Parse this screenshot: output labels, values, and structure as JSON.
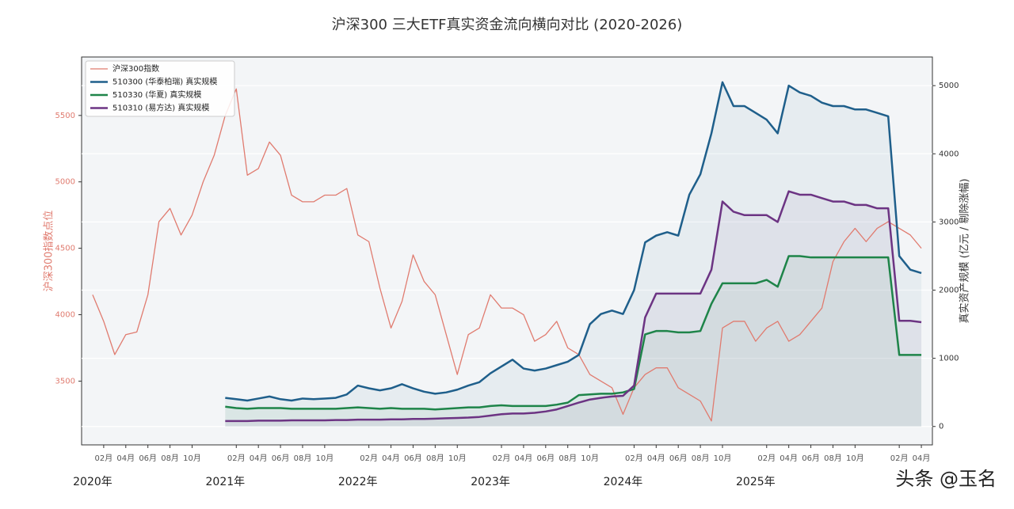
{
  "chart_data": {
    "type": "line",
    "title": "沪深300 三大ETF真实资金流向横向对比 (2020-2026)",
    "ylabel": "沪深300指数点位",
    "y2label": "真实资产规模 (亿元 / 剔除涨幅)",
    "watermark": "头条 @玉名",
    "x": [
      "2020-01",
      "2020-02",
      "2020-03",
      "2020-04",
      "2020-05",
      "2020-06",
      "2020-07",
      "2020-08",
      "2020-09",
      "2020-10",
      "2020-11",
      "2020-12",
      "2021-01",
      "2021-02",
      "2021-03",
      "2021-04",
      "2021-05",
      "2021-06",
      "2021-07",
      "2021-08",
      "2021-09",
      "2021-10",
      "2021-11",
      "2021-12",
      "2022-01",
      "2022-02",
      "2022-03",
      "2022-04",
      "2022-05",
      "2022-06",
      "2022-07",
      "2022-08",
      "2022-09",
      "2022-10",
      "2022-11",
      "2022-12",
      "2023-01",
      "2023-02",
      "2023-03",
      "2023-04",
      "2023-05",
      "2023-06",
      "2023-07",
      "2023-08",
      "2023-09",
      "2023-10",
      "2023-11",
      "2023-12",
      "2024-01",
      "2024-02",
      "2024-03",
      "2024-04",
      "2024-05",
      "2024-06",
      "2024-07",
      "2024-08",
      "2024-09",
      "2024-10",
      "2024-11",
      "2024-12",
      "2025-01",
      "2025-02",
      "2025-03",
      "2025-04",
      "2025-05",
      "2025-06",
      "2025-07",
      "2025-08",
      "2025-09",
      "2025-10",
      "2025-11",
      "2025-12",
      "2026-01",
      "2026-02",
      "2026-03",
      "2026-04"
    ],
    "xlim": [
      "2019-12",
      "2026-05"
    ],
    "xticks": [
      {
        "value": "2020-02",
        "label": "02月"
      },
      {
        "value": "2020-04",
        "label": "04月"
      },
      {
        "value": "2020-06",
        "label": "06月"
      },
      {
        "value": "2020-08",
        "label": "08月"
      },
      {
        "value": "2020-10",
        "label": "10月"
      },
      {
        "value": "2021-02",
        "label": "02月"
      },
      {
        "value": "2021-04",
        "label": "04月"
      },
      {
        "value": "2021-06",
        "label": "06月"
      },
      {
        "value": "2021-08",
        "label": "08月"
      },
      {
        "value": "2021-10",
        "label": "10月"
      },
      {
        "value": "2022-02",
        "label": "02月"
      },
      {
        "value": "2022-04",
        "label": "04月"
      },
      {
        "value": "2022-06",
        "label": "06月"
      },
      {
        "value": "2022-08",
        "label": "08月"
      },
      {
        "value": "2022-10",
        "label": "10月"
      },
      {
        "value": "2023-02",
        "label": "02月"
      },
      {
        "value": "2023-04",
        "label": "04月"
      },
      {
        "value": "2023-06",
        "label": "06月"
      },
      {
        "value": "2023-08",
        "label": "08月"
      },
      {
        "value": "2023-10",
        "label": "10月"
      },
      {
        "value": "2024-02",
        "label": "02月"
      },
      {
        "value": "2024-04",
        "label": "04月"
      },
      {
        "value": "2024-06",
        "label": "06月"
      },
      {
        "value": "2024-08",
        "label": "08月"
      },
      {
        "value": "2024-10",
        "label": "10月"
      },
      {
        "value": "2025-02",
        "label": "02月"
      },
      {
        "value": "2025-04",
        "label": "04月"
      },
      {
        "value": "2025-06",
        "label": "06月"
      },
      {
        "value": "2025-08",
        "label": "08月"
      },
      {
        "value": "2025-10",
        "label": "10月"
      },
      {
        "value": "2026-02",
        "label": "02月"
      },
      {
        "value": "2026-04",
        "label": "04月"
      }
    ],
    "year_ticks": [
      {
        "value": "2020-01",
        "label": "2020年"
      },
      {
        "value": "2021-01",
        "label": "2021年"
      },
      {
        "value": "2022-01",
        "label": "2022年"
      },
      {
        "value": "2023-01",
        "label": "2023年"
      },
      {
        "value": "2024-01",
        "label": "2024年"
      },
      {
        "value": "2025-01",
        "label": "2025年"
      }
    ],
    "ylim": [
      3020,
      5940
    ],
    "yticks": [
      3500,
      4000,
      4500,
      5000,
      5500
    ],
    "y2lim": [
      -270,
      5420
    ],
    "y2ticks": [
      0,
      1000,
      2000,
      3000,
      4000,
      5000
    ],
    "grid": true,
    "legend": "upper left",
    "series": [
      {
        "name": "沪深300指数",
        "color": "#e07b6f",
        "axis": "y",
        "values": [
          4150,
          3950,
          3700,
          3850,
          3870,
          4150,
          4700,
          4800,
          4600,
          4750,
          5000,
          5200,
          5500,
          5700,
          5050,
          5100,
          5300,
          5200,
          4900,
          4850,
          4850,
          4900,
          4900,
          4950,
          4600,
          4550,
          4200,
          3900,
          4100,
          4450,
          4250,
          4150,
          3850,
          3550,
          3850,
          3900,
          4150,
          4050,
          4050,
          4000,
          3800,
          3850,
          3950,
          3750,
          3700,
          3550,
          3500,
          3450,
          3250,
          3450,
          3550,
          3600,
          3600,
          3450,
          3400,
          3350,
          3200,
          3900,
          3950,
          3950,
          3800,
          3900,
          3950,
          3800,
          3850,
          3950,
          4050,
          4400,
          4550,
          4650,
          4550,
          4650,
          4700,
          4650,
          4600,
          4500
        ]
      },
      {
        "name": "510300 (华泰柏瑞) 真实规模",
        "color": "#1f5f8b",
        "axis": "y2",
        "area": true,
        "values": [
          null,
          null,
          null,
          null,
          null,
          null,
          null,
          null,
          null,
          null,
          null,
          null,
          420,
          400,
          380,
          410,
          440,
          400,
          380,
          410,
          400,
          410,
          420,
          470,
          600,
          560,
          530,
          560,
          620,
          560,
          510,
          480,
          500,
          540,
          600,
          650,
          780,
          880,
          980,
          850,
          820,
          850,
          900,
          950,
          1050,
          1500,
          1650,
          1700,
          1650,
          2000,
          2700,
          2800,
          2850,
          2800,
          3400,
          3700,
          4300,
          5050,
          4700,
          4700,
          4600,
          4500,
          4300,
          5000,
          4900,
          4850,
          4750,
          4700,
          4700,
          4650,
          4650,
          4600,
          4550,
          2500,
          2300,
          2250
        ]
      },
      {
        "name": "510330 (华夏) 真实规模",
        "color": "#1e8449",
        "axis": "y2",
        "area": true,
        "values": [
          null,
          null,
          null,
          null,
          null,
          null,
          null,
          null,
          null,
          null,
          null,
          null,
          290,
          270,
          260,
          270,
          270,
          270,
          260,
          260,
          260,
          260,
          260,
          270,
          280,
          270,
          260,
          270,
          260,
          260,
          260,
          250,
          260,
          270,
          280,
          280,
          300,
          310,
          300,
          300,
          300,
          300,
          320,
          350,
          460,
          470,
          480,
          480,
          500,
          550,
          1350,
          1400,
          1400,
          1380,
          1380,
          1400,
          1800,
          2100,
          2100,
          2100,
          2100,
          2150,
          2050,
          2500,
          2500,
          2480,
          2480,
          2480,
          2480,
          2480,
          2480,
          2480,
          2480,
          1050,
          1050,
          1050
        ]
      },
      {
        "name": "510310 (易方达) 真实规模",
        "color": "#6c3483",
        "axis": "y2",
        "area": true,
        "values": [
          null,
          null,
          null,
          null,
          null,
          null,
          null,
          null,
          null,
          null,
          null,
          null,
          80,
          80,
          80,
          85,
          85,
          85,
          90,
          90,
          90,
          90,
          95,
          95,
          100,
          100,
          100,
          105,
          105,
          110,
          110,
          115,
          120,
          125,
          130,
          140,
          160,
          180,
          190,
          190,
          200,
          220,
          250,
          300,
          350,
          395,
          420,
          440,
          450,
          600,
          1600,
          1950,
          1950,
          1950,
          1950,
          1950,
          2300,
          3300,
          3150,
          3100,
          3100,
          3100,
          3000,
          3450,
          3400,
          3400,
          3350,
          3300,
          3300,
          3250,
          3250,
          3200,
          3200,
          1550,
          1550,
          1530
        ]
      }
    ]
  }
}
